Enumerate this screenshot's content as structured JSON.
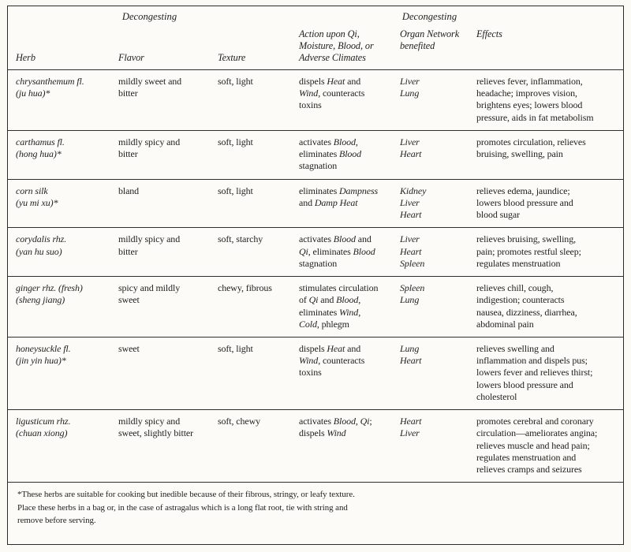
{
  "table": {
    "group_headers": [
      "Decongesting",
      "Decongesting"
    ],
    "columns": [
      "Herb",
      "Flavor",
      "Texture",
      "Action upon Qi,\nMoisture, Blood, or\nAdverse Climates",
      "Organ Network\nbenefited",
      "Effects"
    ],
    "rows": [
      [
        "chrysanthemum fl.\n(ju hua)*",
        "mildly sweet and\nbitter",
        "soft, light",
        "dispels _Heat_ and\n_Wind_, counteracts\ntoxins",
        "Liver\nLung",
        "relieves fever, inflammation,\nheadache; improves vision,\nbrightens eyes; lowers blood\npressure, aids in fat metabolism"
      ],
      [
        "carthamus fl.\n(hong hua)*",
        "mildly spicy and\nbitter",
        "soft, light",
        "activates _Blood_,\neliminates _Blood_\nstagnation",
        "Liver\nHeart",
        "promotes circulation, relieves\nbruising, swelling, pain"
      ],
      [
        "corn silk\n(yu mi xu)*",
        "bland",
        "soft, light",
        "eliminates _Dampness_\nand _Damp Heat_",
        "Kidney\nLiver\nHeart",
        "relieves edema, jaundice;\nlowers blood pressure and\nblood sugar"
      ],
      [
        "corydalis rhz.\n(yan hu suo)",
        "mildly spicy and\nbitter",
        "soft, starchy",
        "activates _Blood_ and\n_Qi_, eliminates _Blood_\nstagnation",
        "Liver\nHeart\nSpleen",
        "relieves bruising, swelling,\npain; promotes restful sleep;\nregulates menstruation"
      ],
      [
        "ginger rhz. (fresh)\n(sheng jiang)",
        "spicy and mildly\nsweet",
        "chewy, fibrous",
        "stimulates circulation\nof _Qi_ and _Blood_,\neliminates _Wind_,\n_Cold_, phlegm",
        "Spleen\nLung",
        "relieves chill, cough,\nindigestion; counteracts\nnausea, dizziness, diarrhea,\nabdominal pain"
      ],
      [
        "honeysuckle fl.\n(jin yin hua)*",
        "sweet",
        "soft, light",
        "dispels _Heat_ and\n_Wind_, counteracts\ntoxins",
        "Lung\nHeart",
        "relieves swelling and\ninflammation and dispels pus;\nlowers fever and relieves thirst;\nlowers blood pressure and\ncholesterol"
      ],
      [
        "ligusticum rhz.\n(chuan xiong)",
        "mildly spicy and\nsweet, slightly bitter",
        "soft, chewy",
        "activates _Blood_, _Qi_;\ndispels _Wind_",
        "Heart\nLiver",
        "promotes cerebral and coronary\ncirculation—ameliorates angina;\nrelieves muscle and head pain;\nregulates menstruation and\nrelieves cramps and seizures"
      ]
    ],
    "footnote": "*These herbs are suitable for cooking but inedible because of their fibrous, stringy, or leafy texture.\nPlace these herbs in a bag or, in the case of astragalus which is a long flat root, tie with string and\nremove before serving."
  }
}
